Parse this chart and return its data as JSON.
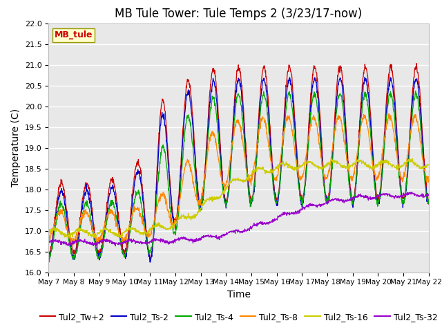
{
  "title": "MB Tule Tower: Tule Temps 2 (3/23/17-now)",
  "xlabel": "Time",
  "ylabel": "Temperature (C)",
  "ylim": [
    16.0,
    22.0
  ],
  "yticks": [
    16.0,
    16.5,
    17.0,
    17.5,
    18.0,
    18.5,
    19.0,
    19.5,
    20.0,
    20.5,
    21.0,
    21.5,
    22.0
  ],
  "xtick_labels": [
    "May 7",
    "May 8",
    "May 9",
    "May 10",
    "May 11",
    "May 12",
    "May 13",
    "May 14",
    "May 15",
    "May 16",
    "May 17",
    "May 18",
    "May 19",
    "May 20",
    "May 21",
    "May 22"
  ],
  "series_colors": {
    "Tul2_Tw+2": "#cc0000",
    "Tul2_Ts-2": "#0000cc",
    "Tul2_Ts-4": "#00aa00",
    "Tul2_Ts-8": "#ff8800",
    "Tul2_Ts-16": "#cccc00",
    "Tul2_Ts-32": "#9900cc"
  },
  "legend_box_facecolor": "#ffffcc",
  "legend_box_edgecolor": "#999900",
  "legend_label_color": "#cc0000",
  "plot_bg_color": "#e8e8e8",
  "grid_color": "#ffffff",
  "title_fontsize": 12,
  "axis_label_fontsize": 10,
  "tick_fontsize": 8,
  "legend_fontsize": 9
}
